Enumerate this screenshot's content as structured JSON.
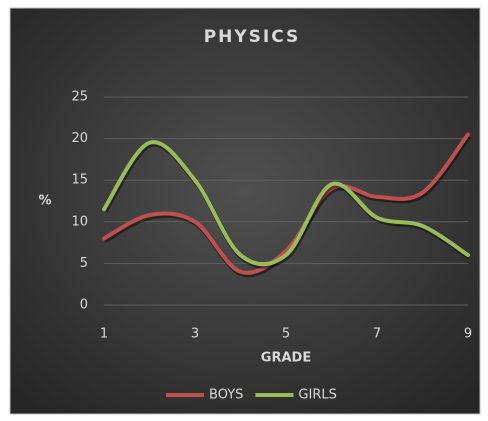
{
  "chart_data": {
    "type": "line",
    "title": "PHYSICS",
    "xlabel": "GRADE",
    "ylabel": "%",
    "x": [
      1,
      2,
      3,
      4,
      5,
      6,
      7,
      8,
      9
    ],
    "series": [
      {
        "name": "BOYS",
        "color": "#c0504d",
        "values": [
          8,
          10.8,
          10,
          4,
          6.5,
          14,
          13,
          13.5,
          20.5
        ]
      },
      {
        "name": "GIRLS",
        "color": "#9bbb59",
        "values": [
          11.5,
          19.5,
          15,
          6,
          6,
          14.5,
          10.5,
          9.5,
          6
        ]
      }
    ],
    "xlim": [
      1,
      9
    ],
    "xticks": [
      1,
      3,
      5,
      7,
      9
    ],
    "ylim": [
      0,
      25
    ],
    "yticks": [
      0,
      5,
      10,
      15,
      20,
      25
    ],
    "grid": true,
    "smooth": true,
    "legend": "bottom"
  }
}
